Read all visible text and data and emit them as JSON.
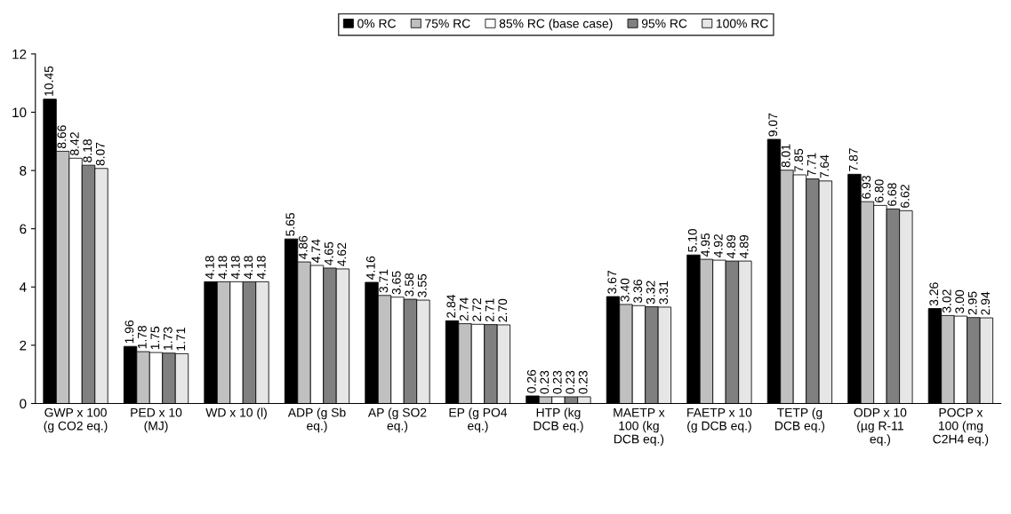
{
  "chart_data": {
    "type": "bar",
    "categories": [
      "GWP x 100\n(g CO2 eq.)",
      "PED x 10\n(MJ)",
      "WD x 10 (l)",
      "ADP (g Sb\neq.)",
      "AP (g SO2\neq.)",
      "EP (g PO4\neq.)",
      "HTP (kg\nDCB eq.)",
      "MAETP x\n100 (kg\nDCB eq.)",
      "FAETP x 10\n(g DCB eq.)",
      "TETP (g\nDCB eq.)",
      "ODP x 10\n(µg R-11\neq.)",
      "POCP x\n100 (mg\nC2H4 eq.)"
    ],
    "series": [
      {
        "name": "0% RC",
        "color": "#000000",
        "values": [
          10.45,
          1.96,
          4.18,
          5.65,
          4.16,
          2.84,
          0.26,
          3.67,
          5.1,
          9.07,
          7.87,
          3.26
        ],
        "value_labels": [
          "10.45",
          "1.96",
          "4.18",
          "5.65",
          "4.16",
          "2.84",
          "0.26",
          "3.67",
          "5.10",
          "9.07",
          "7.87",
          "3.26"
        ]
      },
      {
        "name": "75% RC",
        "color": "#c0c0c0",
        "values": [
          8.66,
          1.78,
          4.18,
          4.86,
          3.71,
          2.74,
          0.23,
          3.4,
          4.95,
          8.01,
          6.93,
          3.02
        ],
        "value_labels": [
          "8.66",
          "1.78",
          "4.18",
          "4.86",
          "3.71",
          "2.74",
          "0.23",
          "3.40",
          "4.95",
          "8.01",
          "6.93",
          "3.02"
        ]
      },
      {
        "name": "85% RC (base case)",
        "color": "#ffffff",
        "values": [
          8.42,
          1.75,
          4.18,
          4.74,
          3.65,
          2.72,
          0.23,
          3.36,
          4.92,
          7.85,
          6.8,
          3.0
        ],
        "value_labels": [
          "8.42",
          "1.75",
          "4.18",
          "4.74",
          "3.65",
          "2.72",
          "0.23",
          "3.36",
          "4.92",
          "7.85",
          "6.80",
          "3.00"
        ]
      },
      {
        "name": "95% RC",
        "color": "#808080",
        "values": [
          8.18,
          1.73,
          4.18,
          4.65,
          3.58,
          2.71,
          0.23,
          3.32,
          4.89,
          7.71,
          6.68,
          2.95
        ],
        "value_labels": [
          "8.18",
          "1.73",
          "4.18",
          "4.65",
          "3.58",
          "2.71",
          "0.23",
          "3.32",
          "4.89",
          "7.71",
          "6.68",
          "2.95"
        ]
      },
      {
        "name": "100% RC",
        "color": "#e6e6e6",
        "values": [
          8.07,
          1.71,
          4.18,
          4.62,
          3.55,
          2.7,
          0.23,
          3.31,
          4.89,
          7.64,
          6.62,
          2.94
        ],
        "value_labels": [
          "8.07",
          "1.71",
          "4.18",
          "4.62",
          "3.55",
          "2.70",
          "0.23",
          "3.31",
          "4.89",
          "7.64",
          "6.62",
          "2.94"
        ]
      }
    ],
    "ylim": [
      0,
      12
    ],
    "yticks": [
      0,
      2,
      4,
      6,
      8,
      10,
      12
    ],
    "grid": false,
    "legend": "top"
  }
}
